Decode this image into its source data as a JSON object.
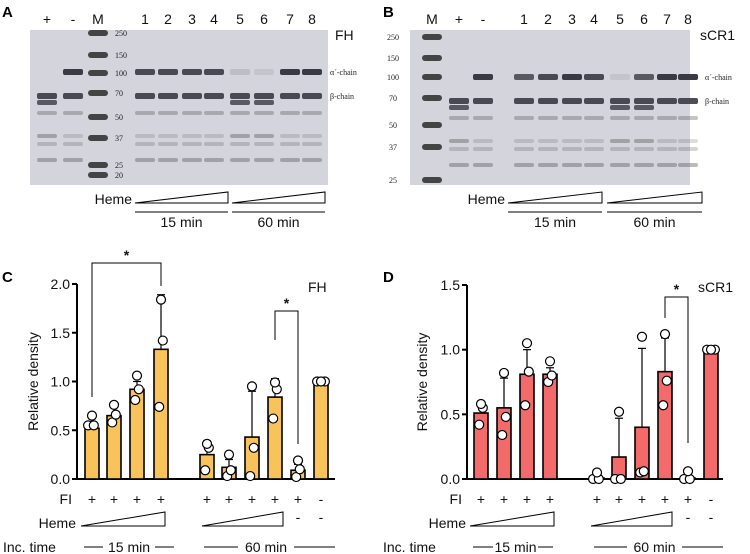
{
  "panels": {
    "a": "A",
    "b": "B",
    "c": "C",
    "d": "D"
  },
  "gel_a": {
    "protein": "FH",
    "lanes": [
      "+",
      "-",
      "M",
      "1",
      "2",
      "3",
      "4",
      "5",
      "6",
      "7",
      "8"
    ],
    "markers": [
      "250",
      "150",
      "100",
      "70",
      "50",
      "37",
      "25",
      "20"
    ],
    "chain_labels": [
      "α´-chain",
      "β-chain"
    ],
    "heme_label": "Heme",
    "times": [
      "15 min",
      "60 min"
    ]
  },
  "gel_b": {
    "protein": "sCR1",
    "lanes": [
      "M",
      "+",
      "-",
      "1",
      "2",
      "3",
      "4",
      "5",
      "6",
      "7",
      "8"
    ],
    "markers": [
      "250",
      "150",
      "100",
      "70",
      "50",
      "37",
      "25"
    ],
    "chain_labels": [
      "α´-chain",
      "β-chain"
    ],
    "heme_label": "Heme",
    "times": [
      "15 min",
      "60 min"
    ]
  },
  "chart_data": [
    {
      "type": "bar",
      "title": "FH",
      "ylabel": "Relative density",
      "ylim": [
        0,
        2.0
      ],
      "yticks": [
        "0.0",
        "0.5",
        "1.0",
        "1.5",
        "2.0"
      ],
      "color": "#f9c35c",
      "categories": [
        "15 min 1",
        "15 min 2",
        "15 min 3",
        "15 min 4",
        "60 min 1",
        "60 min 2",
        "60 min 3",
        "60 min 4",
        "60 min no heme",
        "no FI no heme"
      ],
      "values": [
        0.52,
        0.65,
        0.92,
        1.33,
        0.25,
        0.12,
        0.43,
        0.84,
        0.09,
        1.0
      ],
      "error_upper": [
        0.62,
        0.74,
        1.0,
        1.89,
        0.39,
        0.2,
        0.9,
        1.03,
        0.15,
        1.0
      ],
      "points": [
        [
          0.55,
          0.55,
          0.65
        ],
        [
          0.58,
          0.66,
          0.76
        ],
        [
          0.81,
          0.92,
          1.06
        ],
        [
          0.74,
          1.42,
          1.84
        ],
        [
          0.09,
          0.32,
          0.36
        ],
        [
          0.03,
          0.09,
          0.25
        ],
        [
          0.03,
          0.32,
          0.95
        ],
        [
          0.62,
          0.92,
          0.99
        ],
        [
          0.02,
          0.1,
          0.19
        ],
        [
          1.0,
          1.0,
          1.0
        ]
      ],
      "significance": [
        {
          "from": 0,
          "to": 3,
          "label": "*"
        },
        {
          "from": 7,
          "to": 8,
          "label": "*"
        }
      ],
      "rows": {
        "fi_label": "FI",
        "fi": [
          "+",
          "+",
          "+",
          "+",
          "+",
          "+",
          "+",
          "+",
          "+",
          "-"
        ],
        "heme_label": "Heme",
        "heme_none": [
          "-",
          "-"
        ],
        "time_label": "Inc. time",
        "times": [
          "15 min",
          "60 min"
        ]
      }
    },
    {
      "type": "bar",
      "title": "sCR1",
      "ylabel": "Relative density",
      "ylim": [
        0,
        1.5
      ],
      "yticks": [
        "0.0",
        "0.5",
        "1.0",
        "1.5"
      ],
      "color": "#f26a6a",
      "categories": [
        "15 min 1",
        "15 min 2",
        "15 min 3",
        "15 min 4",
        "60 min 1",
        "60 min 2",
        "60 min 3",
        "60 min 4",
        "60 min no heme",
        "no FI no heme"
      ],
      "values": [
        0.51,
        0.55,
        0.81,
        0.81,
        0.0,
        0.17,
        0.4,
        0.83,
        0.0,
        1.0
      ],
      "error_upper": [
        0.56,
        0.78,
        1.0,
        0.86,
        0.02,
        0.47,
        1.01,
        1.09,
        0.03,
        1.0
      ],
      "points": [
        [
          0.42,
          0.55,
          0.58
        ],
        [
          0.34,
          0.48,
          0.82
        ],
        [
          0.57,
          0.83,
          1.05
        ],
        [
          0.75,
          0.8,
          0.91
        ],
        [
          0.0,
          0.0,
          0.05
        ],
        [
          0.0,
          0.0,
          0.52
        ],
        [
          0.05,
          0.06,
          1.1
        ],
        [
          0.57,
          0.76,
          1.12
        ],
        [
          0.0,
          0.0,
          0.06
        ],
        [
          1.0,
          1.0,
          1.0
        ]
      ],
      "significance": [
        {
          "from": 7,
          "to": 8,
          "label": "*"
        }
      ],
      "rows": {
        "fi_label": "FI",
        "fi": [
          "+",
          "+",
          "+",
          "+",
          "+",
          "+",
          "+",
          "+",
          "+",
          "-"
        ],
        "heme_label": "Heme",
        "heme_none": [
          "-",
          "-"
        ],
        "time_label": "Inc. time",
        "times": [
          "15 min",
          "60 min"
        ]
      }
    }
  ]
}
